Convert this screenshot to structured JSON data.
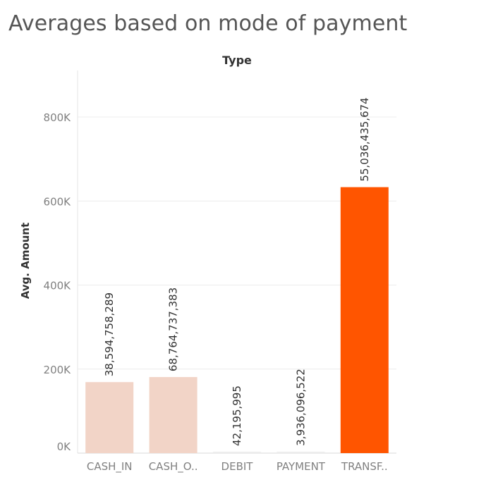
{
  "title": "Averages based on mode of payment",
  "chart_data": {
    "type": "bar",
    "column_header": "Type",
    "ylabel": "Avg. Amount",
    "categories": [
      "CASH_IN",
      "CASH_O..",
      "DEBIT",
      "PAYMENT",
      "TRANSF.."
    ],
    "values": [
      169000,
      181000,
      1200,
      3500,
      633000
    ],
    "data_labels": [
      "38,594,758,289",
      "68,764,737,383",
      "42,195,995",
      "3,936,096,522",
      "55,036,435,674"
    ],
    "colors": [
      "#f2d4c7",
      "#f2d4c7",
      "#ededed",
      "#ededed",
      "#ff5500"
    ],
    "yticks": [
      0,
      200000,
      400000,
      600000,
      800000
    ],
    "ytick_labels": [
      "0K",
      "200K",
      "400K",
      "600K",
      "800K"
    ],
    "ylim": [
      0,
      900000
    ],
    "grid": true,
    "legend": "none"
  }
}
